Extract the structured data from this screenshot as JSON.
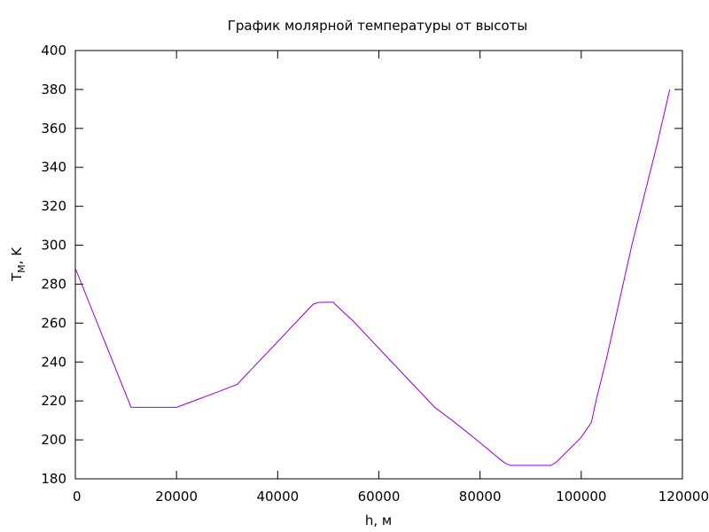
{
  "chart_data": {
    "type": "line",
    "title": "График молярной температуры от высоты",
    "xlabel": "h, м",
    "ylabel": "T",
    "ylabel_sub": "M",
    "ylabel_suffix": ", K",
    "xlim": [
      0,
      120000
    ],
    "ylim": [
      180,
      400
    ],
    "xticks": [
      0,
      20000,
      40000,
      60000,
      80000,
      100000,
      120000
    ],
    "yticks": [
      180,
      200,
      220,
      240,
      260,
      280,
      300,
      320,
      340,
      360,
      380,
      400
    ],
    "grid": false,
    "legend": "none",
    "colors": {
      "series": "#9400d3",
      "axes": "#000000"
    },
    "series": [
      {
        "x": [
          0,
          2000,
          4000,
          6000,
          8000,
          10000,
          11000,
          12000,
          14000,
          16000,
          18000,
          20000,
          24000,
          28000,
          31000,
          32000,
          33000,
          35000,
          40000,
          45000,
          46000,
          47000,
          48000,
          50000,
          51000,
          52000,
          55000,
          60000,
          65000,
          70000,
          71000,
          75000,
          80000,
          84000,
          85000,
          86000,
          90000,
          94000,
          95000,
          100000,
          102000,
          103000,
          105000,
          110000,
          115000,
          117500
        ],
        "y": [
          288.2,
          275.2,
          262.2,
          249.2,
          236.2,
          223.3,
          216.8,
          216.7,
          216.7,
          216.7,
          216.7,
          216.7,
          220.6,
          224.5,
          227.5,
          228.5,
          231.3,
          236.8,
          250.4,
          264.2,
          267.0,
          269.7,
          270.6,
          270.7,
          270.7,
          268.1,
          260.8,
          247.0,
          233.3,
          219.6,
          216.8,
          209.0,
          198.6,
          189.9,
          188.0,
          186.9,
          186.9,
          186.9,
          188.4,
          201.3,
          209.0,
          221.0,
          241.8,
          300.0,
          352.0,
          380.0
        ]
      }
    ]
  }
}
